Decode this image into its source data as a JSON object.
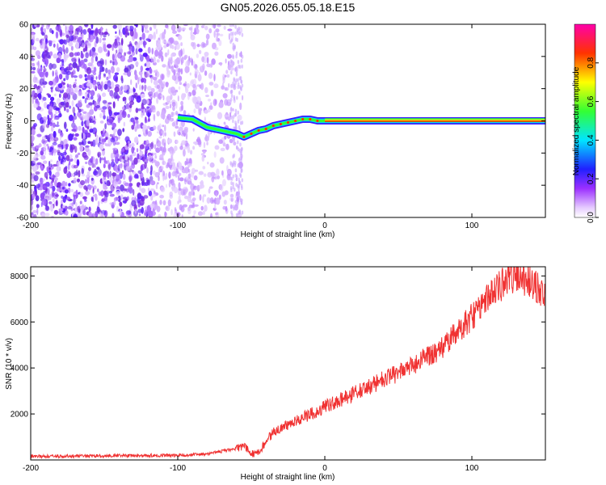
{
  "title": "GN05.2026.055.05.18.E15",
  "colors": {
    "snr_line": "#f03232",
    "speckle": "#8a2be2",
    "frame": "#000000"
  },
  "chart_data": [
    {
      "type": "heatmap",
      "xlabel": "Height of straight line (km)",
      "ylabel": "Frequency (Hz)",
      "xlim": [
        -200,
        150
      ],
      "ylim": [
        -60,
        60
      ],
      "xticks": [
        -200,
        -100,
        0,
        100
      ],
      "yticks": [
        -60,
        -40,
        -20,
        0,
        20,
        40,
        60
      ],
      "colorbar": {
        "label": "Normalized spectral amplitude",
        "range": [
          0,
          1
        ],
        "ticks": [
          "0.0",
          "0.2",
          "0.4",
          "0.6",
          "0.8"
        ],
        "colormap": "rainbow"
      },
      "ridge_track": {
        "x": [
          -100,
          -90,
          -80,
          -70,
          -60,
          -55,
          -50,
          -45,
          -40,
          -35,
          -30,
          -25,
          -20,
          -15,
          -10,
          -5,
          0,
          150
        ],
        "y": [
          2,
          1,
          -4,
          -6,
          -8,
          -10,
          -8,
          -6,
          -5,
          -3,
          -2,
          -1,
          0,
          1,
          1,
          0,
          0,
          0
        ]
      },
      "noise_region_x": [
        -200,
        -50
      ]
    },
    {
      "type": "line",
      "xlabel": "Height of straight line (km)",
      "ylabel": "SNR (10 * v/v)",
      "xlim": [
        -200,
        150
      ],
      "ylim": [
        0,
        8400
      ],
      "xticks": [
        -200,
        -100,
        0,
        100
      ],
      "yticks": [
        2000,
        4000,
        6000,
        8000
      ],
      "series": [
        {
          "x": [
            -200,
            -150,
            -100,
            -80,
            -60,
            -55,
            -50,
            -45,
            -40,
            -35,
            -30,
            -20,
            -10,
            0,
            10,
            20,
            30,
            40,
            50,
            60,
            70,
            80,
            90,
            100,
            110,
            120,
            130,
            140,
            150
          ],
          "y": [
            150,
            180,
            200,
            250,
            500,
            600,
            250,
            300,
            800,
            1200,
            1400,
            1700,
            2000,
            2300,
            2600,
            2900,
            3200,
            3500,
            3800,
            4100,
            4500,
            4900,
            5600,
            6200,
            7000,
            7600,
            8000,
            7800,
            7200
          ]
        }
      ]
    }
  ]
}
